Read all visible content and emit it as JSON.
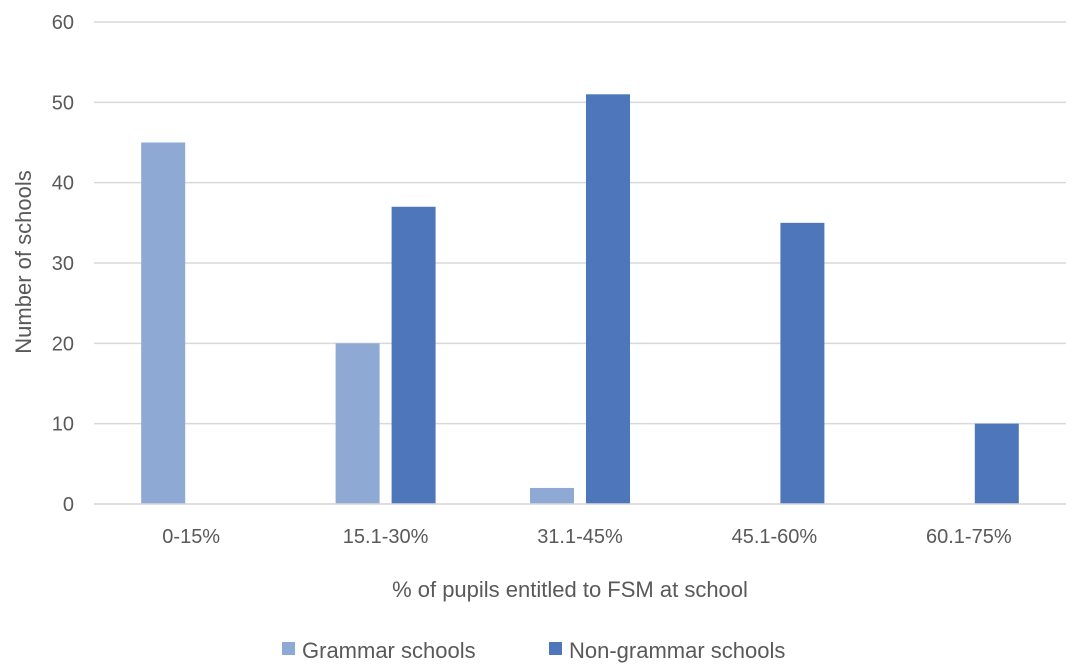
{
  "chart_data": {
    "type": "bar",
    "title": "",
    "xlabel": "% of pupils entitled to FSM at school",
    "ylabel": "Number of schools",
    "ylim": [
      0,
      60
    ],
    "yticks": [
      0,
      10,
      20,
      30,
      40,
      50,
      60
    ],
    "categories": [
      "0-15%",
      "15.1-30%",
      "31.1-45%",
      "45.1-60%",
      "60.1-75%"
    ],
    "series": [
      {
        "name": "Grammar schools",
        "color": "#8EA9D3",
        "values": [
          45,
          20,
          2,
          0,
          0
        ]
      },
      {
        "name": "Non-grammar schools",
        "color": "#4D77BA",
        "values": [
          0,
          37,
          51,
          35,
          10
        ]
      }
    ],
    "grid": true,
    "legend": "bottom",
    "gridline_color": "#D9D9D9",
    "text_color": "#595959"
  }
}
